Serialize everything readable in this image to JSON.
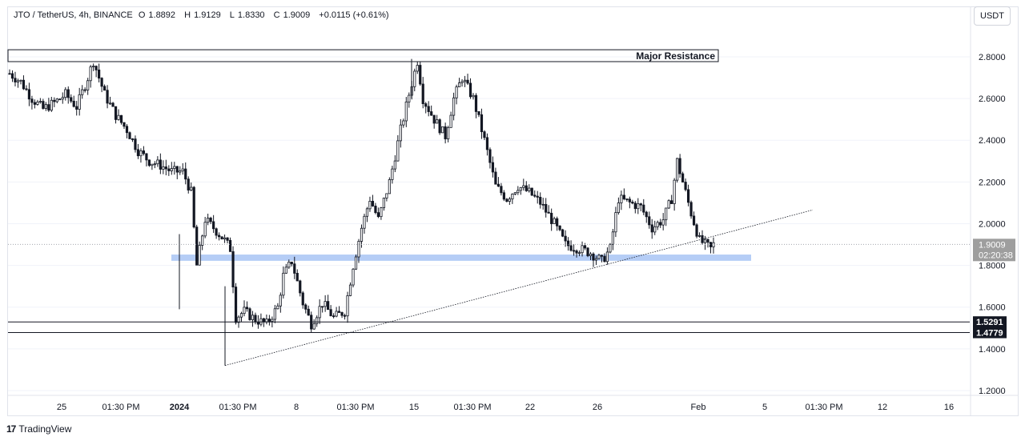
{
  "header": {
    "symbol": "JTO / TetherUS, 4h, BINANCE",
    "open_label": "O",
    "open": "1.8892",
    "high_label": "H",
    "high": "1.9129",
    "low_label": "L",
    "low": "1.8330",
    "close_label": "C",
    "close": "1.9009",
    "change": "+0.0115 (+0.61%)"
  },
  "unit": "USDT",
  "brand": {
    "name": "TradingView",
    "logo_glyph": "17"
  },
  "colors": {
    "up": "#26a69a",
    "down": "#ef5350",
    "candle": "#131722",
    "zone": "#a8c4f5",
    "grid": "#f0f3fa",
    "axis_text": "#131722"
  },
  "chart_data": {
    "type": "candlestick",
    "price_axis": {
      "ticks": [
        "2.8000",
        "2.6000",
        "2.4000",
        "2.2000",
        "2.0000",
        "1.8000",
        "1.6000",
        "1.4000",
        "1.2000"
      ],
      "range": [
        1.17,
        2.98
      ]
    },
    "time_axis": {
      "ticks": [
        "25",
        "01:30 PM",
        "2024",
        "01:30 PM",
        "8",
        "01:30 PM",
        "15",
        "01:30 PM",
        "22",
        "26",
        "Feb",
        "5",
        "01:30 PM",
        "12",
        "16"
      ]
    },
    "current_price": {
      "value": "1.9009",
      "countdown": "02:20:38"
    },
    "horizontal_levels": [
      {
        "value": 1.5291,
        "label": "1.5291"
      },
      {
        "value": 1.4779,
        "label": "1.4779"
      }
    ],
    "resistance_zone": {
      "label": "Major Resistance",
      "from": 2.777,
      "to": 2.834
    },
    "support_zone": {
      "from": 1.822,
      "to": 1.852
    },
    "trendline": {
      "from": {
        "date": "Jan 4",
        "price": 1.32
      },
      "to": {
        "date": "Feb 5",
        "price": 2.066
      }
    },
    "close_path": [
      [
        0,
        2.72
      ],
      [
        4,
        2.68
      ],
      [
        8,
        2.6
      ],
      [
        12,
        2.55
      ],
      [
        16,
        2.58
      ],
      [
        20,
        2.62
      ],
      [
        24,
        2.56
      ],
      [
        28,
        2.7
      ],
      [
        30,
        2.78
      ],
      [
        34,
        2.62
      ],
      [
        38,
        2.52
      ],
      [
        42,
        2.45
      ],
      [
        46,
        2.35
      ],
      [
        50,
        2.3
      ],
      [
        54,
        2.28
      ],
      [
        58,
        2.25
      ],
      [
        62,
        2.25
      ],
      [
        65,
        2.15
      ],
      [
        67,
        1.8
      ],
      [
        70,
        2.02
      ],
      [
        73,
        1.98
      ],
      [
        77,
        1.92
      ],
      [
        79,
        1.88
      ],
      [
        81,
        1.55
      ],
      [
        84,
        1.58
      ],
      [
        88,
        1.54
      ],
      [
        92,
        1.52
      ],
      [
        96,
        1.6
      ],
      [
        98,
        1.75
      ],
      [
        101,
        1.82
      ],
      [
        105,
        1.62
      ],
      [
        108,
        1.52
      ],
      [
        112,
        1.62
      ],
      [
        116,
        1.55
      ],
      [
        120,
        1.58
      ],
      [
        123,
        1.8
      ],
      [
        126,
        1.98
      ],
      [
        129,
        2.12
      ],
      [
        132,
        2.02
      ],
      [
        136,
        2.2
      ],
      [
        140,
        2.45
      ],
      [
        143,
        2.62
      ],
      [
        146,
        2.78
      ],
      [
        148,
        2.6
      ],
      [
        152,
        2.5
      ],
      [
        156,
        2.42
      ],
      [
        159,
        2.6
      ],
      [
        162,
        2.7
      ],
      [
        166,
        2.6
      ],
      [
        170,
        2.4
      ],
      [
        174,
        2.18
      ],
      [
        178,
        2.12
      ],
      [
        182,
        2.18
      ],
      [
        186,
        2.15
      ],
      [
        190,
        2.1
      ],
      [
        195,
        2.0
      ],
      [
        199,
        1.9
      ],
      [
        204,
        1.88
      ],
      [
        208,
        1.86
      ],
      [
        212,
        1.82
      ],
      [
        215,
        1.88
      ],
      [
        218,
        2.12
      ],
      [
        222,
        2.1
      ],
      [
        226,
        2.08
      ],
      [
        230,
        1.98
      ],
      [
        234,
        2.02
      ],
      [
        237,
        2.12
      ],
      [
        239,
        2.3
      ],
      [
        241,
        2.2
      ],
      [
        244,
        2.05
      ],
      [
        247,
        1.92
      ],
      [
        251,
        1.88
      ],
      [
        252,
        1.9
      ]
    ]
  }
}
